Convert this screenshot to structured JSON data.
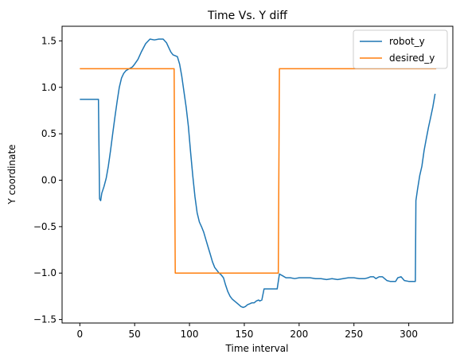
{
  "chart_data": {
    "type": "line",
    "title": "Time Vs. Y diff",
    "xlabel": "Time interval",
    "ylabel": "Y coordinate",
    "xlim": [
      -16.2,
      340.2
    ],
    "ylim": [
      -1.5376,
      1.6576
    ],
    "xticks": [
      "0",
      "50",
      "100",
      "150",
      "200",
      "250",
      "300"
    ],
    "xtick_values": [
      0,
      50,
      100,
      150,
      200,
      250,
      300
    ],
    "yticks": [
      "−1.5",
      "−1.0",
      "−0.5",
      "0.0",
      "0.5",
      "1.0",
      "1.5"
    ],
    "ytick_values": [
      -1.5,
      -1.0,
      -0.5,
      0.0,
      0.5,
      1.0,
      1.5
    ],
    "grid": false,
    "legend_position": "top-right",
    "series": [
      {
        "name": "robot_y",
        "color": "#1f77b4",
        "x": [
          0,
          17,
          18,
          19,
          20,
          22,
          24,
          26,
          28,
          30,
          32,
          34,
          36,
          38,
          40,
          42,
          45,
          48,
          50,
          53,
          56,
          60,
          64,
          68,
          72,
          76,
          79,
          81,
          83,
          85,
          87,
          89,
          91,
          93,
          95,
          97,
          99,
          101,
          103,
          105,
          107,
          109,
          111,
          113,
          115,
          117,
          119,
          121,
          123,
          125,
          127,
          129,
          131,
          133,
          135,
          137,
          139,
          141,
          143,
          145,
          147,
          149,
          151,
          153,
          155,
          157,
          159,
          161,
          163,
          164,
          166,
          168,
          170,
          172,
          174,
          176,
          178,
          180,
          182,
          185,
          188,
          192,
          196,
          200,
          205,
          210,
          215,
          220,
          225,
          230,
          235,
          240,
          245,
          250,
          255,
          260,
          263,
          265,
          268,
          270,
          273,
          276,
          280,
          283,
          285,
          288,
          290,
          293,
          296,
          300,
          303,
          306,
          306.5,
          308,
          310,
          312,
          314,
          316,
          318,
          320,
          322,
          324
        ],
        "y": [
          0.87,
          0.87,
          -0.2,
          -0.22,
          -0.14,
          -0.07,
          0.02,
          0.15,
          0.32,
          0.5,
          0.68,
          0.85,
          1.0,
          1.1,
          1.15,
          1.18,
          1.2,
          1.22,
          1.25,
          1.3,
          1.38,
          1.47,
          1.52,
          1.51,
          1.52,
          1.52,
          1.48,
          1.43,
          1.38,
          1.35,
          1.34,
          1.33,
          1.25,
          1.12,
          0.95,
          0.78,
          0.58,
          0.3,
          0.05,
          -0.18,
          -0.35,
          -0.45,
          -0.5,
          -0.56,
          -0.64,
          -0.72,
          -0.8,
          -0.88,
          -0.94,
          -0.97,
          -1.0,
          -1.02,
          -1.05,
          -1.13,
          -1.2,
          -1.25,
          -1.28,
          -1.3,
          -1.32,
          -1.34,
          -1.36,
          -1.37,
          -1.36,
          -1.34,
          -1.33,
          -1.32,
          -1.32,
          -1.3,
          -1.29,
          -1.3,
          -1.29,
          -1.17,
          -1.17,
          -1.17,
          -1.17,
          -1.17,
          -1.17,
          -1.17,
          -1.01,
          -1.03,
          -1.05,
          -1.05,
          -1.06,
          -1.05,
          -1.05,
          -1.05,
          -1.06,
          -1.06,
          -1.07,
          -1.06,
          -1.07,
          -1.06,
          -1.05,
          -1.05,
          -1.06,
          -1.06,
          -1.05,
          -1.04,
          -1.04,
          -1.06,
          -1.04,
          -1.04,
          -1.08,
          -1.09,
          -1.09,
          -1.09,
          -1.05,
          -1.04,
          -1.08,
          -1.09,
          -1.09,
          -1.09,
          -0.22,
          -0.1,
          0.05,
          0.15,
          0.32,
          0.45,
          0.57,
          0.68,
          0.79,
          0.93
        ]
      },
      {
        "name": "desired_y",
        "color": "#ff7f0e",
        "x": [
          0,
          86,
          87,
          181,
          182,
          325
        ],
        "y": [
          1.2,
          1.2,
          -1.0,
          -1.0,
          1.2,
          1.2
        ]
      }
    ]
  }
}
